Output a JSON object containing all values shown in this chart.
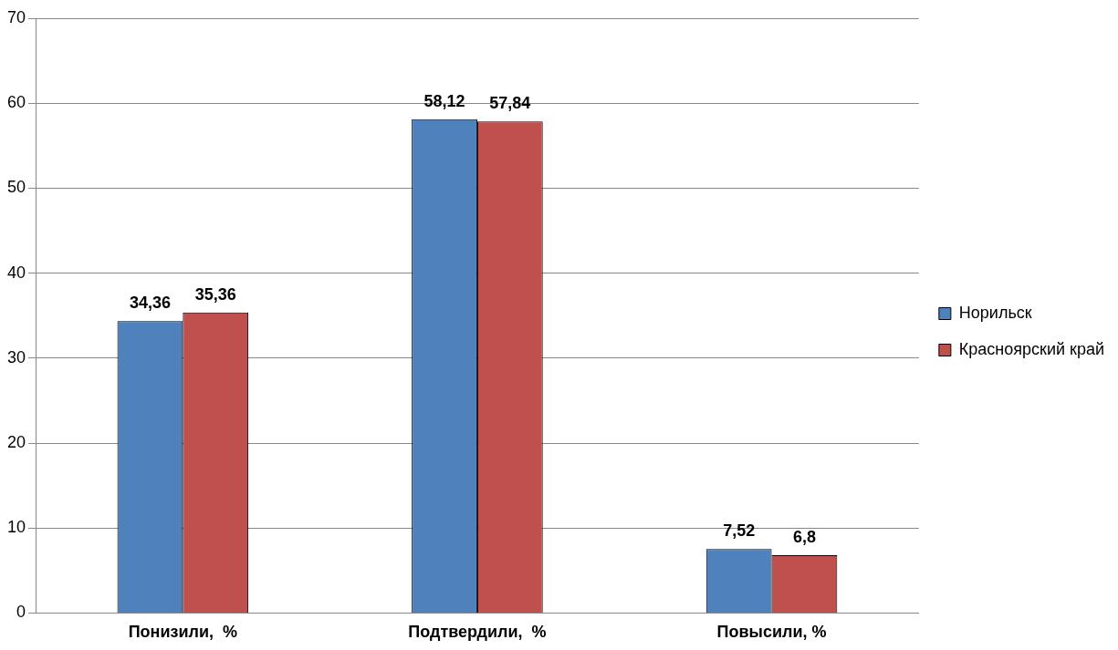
{
  "chart_data": {
    "type": "bar",
    "categories": [
      "Понизили,  %",
      "Подтвердили,  %",
      "Повысили, %"
    ],
    "series": [
      {
        "name": "Норильск",
        "color": "#4f81bd",
        "values": [
          34.36,
          58.12,
          7.52
        ],
        "value_labels": [
          "34,36",
          "58,12",
          "7,52"
        ]
      },
      {
        "name": "Красноярский край",
        "color": "#c0504d",
        "values": [
          35.36,
          57.84,
          6.8
        ],
        "value_labels": [
          "35,36",
          "57,84",
          "6,8"
        ]
      }
    ],
    "ylim": [
      0,
      70
    ],
    "yticks": [
      0,
      10,
      20,
      30,
      40,
      50,
      60,
      70
    ],
    "grid": "y",
    "legend": "right"
  }
}
